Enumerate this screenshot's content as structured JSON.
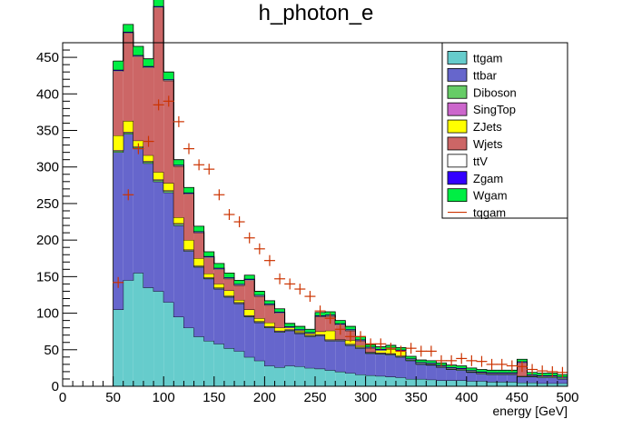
{
  "chart_data": {
    "type": "bar",
    "title": "h_photon_e",
    "xlabel": "energy [GeV]",
    "ylabel": "",
    "xlim": [
      0,
      500
    ],
    "ylim": [
      0,
      470
    ],
    "x_ticks": [
      0,
      50,
      100,
      150,
      200,
      250,
      300,
      350,
      400,
      450,
      500
    ],
    "y_ticks": [
      0,
      50,
      100,
      150,
      200,
      250,
      300,
      350,
      400,
      450
    ],
    "grid": false,
    "legend_position": "top-right",
    "bin_edges": [
      50,
      60,
      70,
      80,
      90,
      100,
      110,
      120,
      130,
      140,
      150,
      160,
      170,
      180,
      190,
      200,
      210,
      220,
      230,
      240,
      250,
      260,
      270,
      280,
      290,
      300,
      310,
      320,
      330,
      340,
      350,
      360,
      370,
      380,
      390,
      400,
      410,
      420,
      430,
      440,
      450,
      460,
      470,
      480,
      490,
      500
    ],
    "series": [
      {
        "name": "ttgam",
        "color": "#66cccc",
        "values": [
          105,
          145,
          155,
          135,
          130,
          115,
          95,
          80,
          68,
          62,
          58,
          52,
          48,
          40,
          35,
          28,
          26,
          28,
          27,
          25,
          24,
          22,
          20,
          18,
          16,
          15,
          14,
          13,
          12,
          10,
          10,
          9,
          8,
          8,
          8,
          7,
          7,
          6,
          6,
          6,
          5,
          5,
          4,
          4,
          4
        ]
      },
      {
        "name": "ttbar",
        "color": "#6666cc",
        "values": [
          215,
          200,
          170,
          170,
          150,
          150,
          125,
          105,
          95,
          85,
          75,
          70,
          65,
          55,
          52,
          52,
          48,
          48,
          45,
          43,
          45,
          40,
          42,
          38,
          36,
          30,
          30,
          30,
          28,
          25,
          20,
          20,
          18,
          15,
          14,
          12,
          10,
          10,
          10,
          10,
          8,
          8,
          8,
          8,
          6
        ]
      },
      {
        "name": "Diboson",
        "color": "#66cc66",
        "values": [
          2,
          2,
          2,
          2,
          2,
          2,
          2,
          1,
          1,
          1,
          1,
          1,
          1,
          1,
          1,
          1,
          1,
          1,
          1,
          1,
          1,
          1,
          1,
          1,
          1,
          1,
          1,
          1,
          1,
          1,
          1,
          1,
          1,
          1,
          1,
          1,
          1,
          1,
          1,
          1,
          1,
          1,
          1,
          1,
          1
        ]
      },
      {
        "name": "SingTop",
        "color": "#cc66cc",
        "values": [
          1,
          1,
          1,
          1,
          1,
          1,
          1,
          1,
          1,
          1,
          1,
          1,
          1,
          1,
          1,
          1,
          1,
          1,
          1,
          1,
          1,
          1,
          1,
          1,
          1,
          1,
          1,
          1,
          1,
          0,
          0,
          0,
          0,
          0,
          0,
          0,
          0,
          0,
          0,
          0,
          0,
          0,
          0,
          0,
          0
        ]
      },
      {
        "name": "ZJets",
        "color": "#ffff00",
        "values": [
          20,
          15,
          8,
          8,
          10,
          10,
          8,
          13,
          10,
          5,
          5,
          7,
          3,
          8,
          4,
          5,
          4,
          2,
          2,
          2,
          4,
          12,
          0,
          5,
          2,
          0,
          3,
          6,
          6,
          0,
          0,
          0,
          0,
          0,
          0,
          0,
          0,
          0,
          0,
          0,
          0,
          0,
          0,
          0,
          0
        ]
      },
      {
        "name": "Wjets",
        "color": "#cc6666",
        "values": [
          88,
          120,
          115,
          120,
          225,
          140,
          70,
          63,
          35,
          22,
          20,
          16,
          20,
          40,
          30,
          24,
          20,
          0,
          0,
          0,
          20,
          20,
          20,
          13,
          6,
          5,
          0,
          0,
          0,
          0,
          0,
          0,
          0,
          0,
          0,
          0,
          0,
          0,
          0,
          0,
          18,
          0,
          0,
          0,
          0
        ]
      },
      {
        "name": "ttV",
        "color": "#ffffff",
        "values": [
          1,
          1,
          1,
          1,
          1,
          1,
          1,
          1,
          1,
          1,
          1,
          1,
          1,
          1,
          1,
          1,
          1,
          1,
          1,
          1,
          1,
          1,
          1,
          1,
          1,
          1,
          1,
          1,
          1,
          1,
          1,
          1,
          1,
          1,
          1,
          1,
          1,
          1,
          1,
          1,
          1,
          1,
          1,
          1,
          1
        ]
      },
      {
        "name": "Zgam",
        "color": "#3300ff",
        "values": [
          1,
          1,
          1,
          1,
          1,
          1,
          1,
          1,
          1,
          1,
          1,
          1,
          1,
          1,
          1,
          1,
          1,
          1,
          1,
          1,
          1,
          1,
          1,
          1,
          1,
          1,
          1,
          1,
          1,
          1,
          1,
          1,
          1,
          1,
          1,
          1,
          1,
          1,
          1,
          1,
          1,
          1,
          1,
          1,
          1
        ]
      },
      {
        "name": "Wgam",
        "color": "#00ee44",
        "values": [
          12,
          10,
          12,
          10,
          10,
          10,
          7,
          7,
          7,
          6,
          6,
          6,
          5,
          5,
          5,
          4,
          4,
          4,
          4,
          4,
          4,
          4,
          4,
          4,
          4,
          3,
          3,
          3,
          3,
          3,
          3,
          3,
          3,
          3,
          3,
          3,
          3,
          3,
          3,
          3,
          3,
          3,
          3,
          3,
          3
        ]
      }
    ],
    "overlay": {
      "name": "tqgam",
      "color": "#cc3300",
      "type": "markers",
      "x": [
        55,
        65,
        75,
        85,
        95,
        105,
        115,
        125,
        135,
        145,
        155,
        165,
        175,
        185,
        195,
        205,
        215,
        225,
        235,
        245,
        255,
        265,
        275,
        285,
        295,
        305,
        315,
        325,
        335,
        345,
        355,
        365,
        375,
        385,
        395,
        405,
        415,
        425,
        435,
        445,
        455,
        465,
        475,
        485,
        495
      ],
      "values": [
        142,
        262,
        325,
        335,
        385,
        390,
        362,
        325,
        303,
        297,
        262,
        235,
        225,
        203,
        188,
        172,
        147,
        140,
        133,
        123,
        103,
        93,
        78,
        68,
        68,
        58,
        58,
        52,
        48,
        52,
        48,
        48,
        35,
        35,
        38,
        35,
        34,
        30,
        30,
        28,
        27,
        23,
        21,
        20,
        19
      ]
    }
  }
}
